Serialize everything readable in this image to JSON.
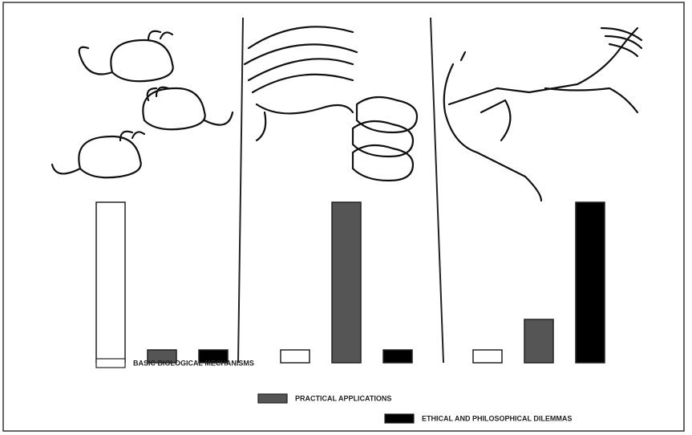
{
  "chart_data": {
    "type": "bar",
    "categories": [
      null,
      null,
      null
    ],
    "series": [
      {
        "name": "BASIC BIOLOGICAL MECHANISMS",
        "color": "#ffffff",
        "values": [
          100,
          8,
          8
        ]
      },
      {
        "name": "PRACTICAL APPLICATIONS",
        "color": "#555555",
        "values": [
          8,
          100,
          27
        ]
      },
      {
        "name": "ETHICAL AND PHILOSOPHICAL DILEMMAS",
        "color": "#000000",
        "values": [
          8,
          8,
          100
        ]
      }
    ],
    "ylim": [
      0,
      100
    ]
  }
}
